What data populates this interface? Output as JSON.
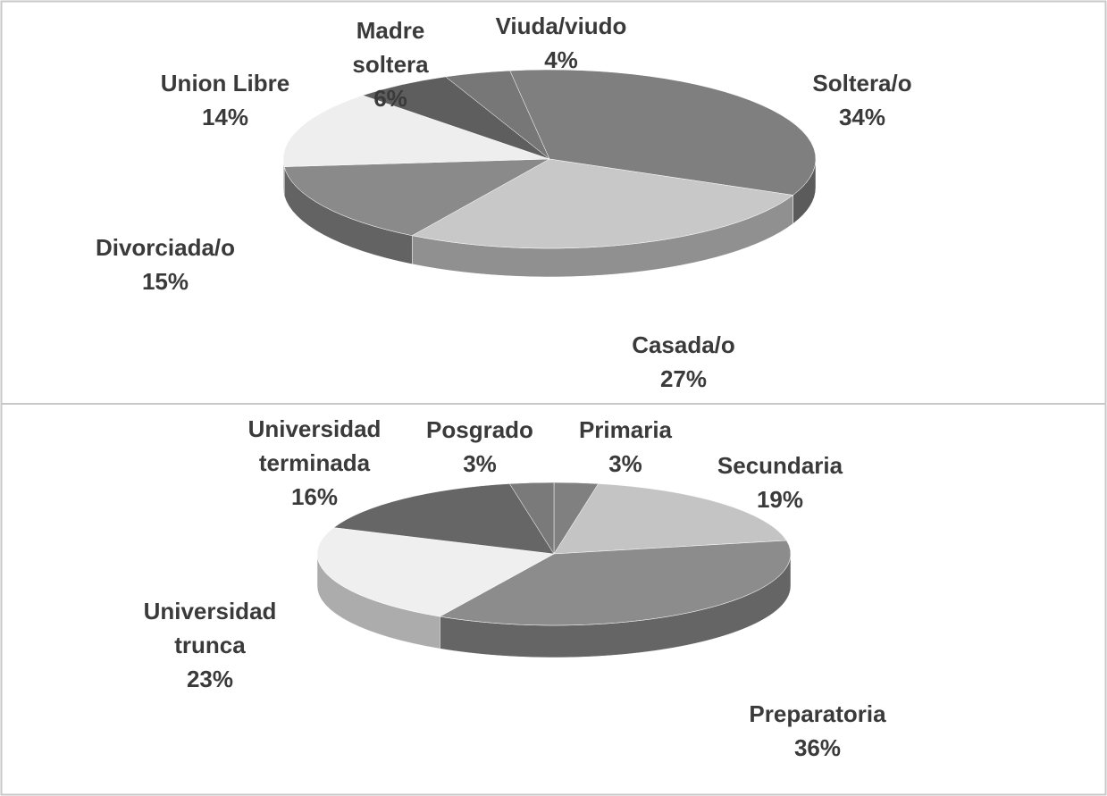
{
  "chart_data": [
    {
      "type": "pie",
      "categories": [
        "Soltera/o",
        "Casada/o",
        "Divorciada/o",
        "Union Libre",
        "Madre soltera",
        "Viuda/viudo"
      ],
      "values": [
        34,
        27,
        15,
        14,
        6,
        4
      ],
      "value_labels": [
        "34%",
        "27%",
        "15%",
        "14%",
        "6%",
        "4%"
      ],
      "colors": [
        "#7f7f7f",
        "#c8c8c8",
        "#8a8a8a",
        "#eeeeee",
        "#5e5e5e",
        "#777777"
      ]
    },
    {
      "type": "pie",
      "categories": [
        "Primaria",
        "Secundaria",
        "Preparatoria",
        "Universidad trunca",
        "Universidad terminada",
        "Posgrado"
      ],
      "values": [
        3,
        19,
        36,
        23,
        16,
        3
      ],
      "value_labels": [
        "3%",
        "19%",
        "36%",
        "23%",
        "16%",
        "3%"
      ],
      "colors": [
        "#808080",
        "#c4c4c4",
        "#8c8c8c",
        "#efefef",
        "#666666",
        "#7a7a7a"
      ]
    }
  ]
}
